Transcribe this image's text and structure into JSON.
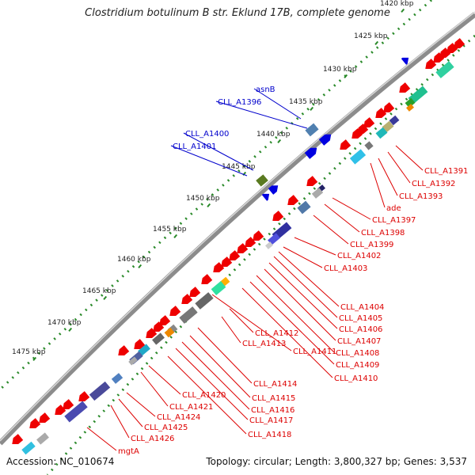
{
  "title": "Clostridium botulinum B str. Eklund 17B, complete genome",
  "accession_text": "Accession: NC_010674",
  "summary_text": "Topology: circular; Length: 3,800,327 bp; Genes: 3,537",
  "kbp_ticks": [
    "1420 kbp",
    "1425 kbp",
    "1430 kbp",
    "1435 kbp",
    "1440 kbp",
    "1445 kbp",
    "1450 kbp",
    "1455 kbp",
    "1460 kbp",
    "1465 kbp",
    "1470 kbp",
    "1475 kbp"
  ],
  "blue_gene_labels": [
    "asnB",
    "CLL_A1396",
    "CLL_A1400",
    "CLL_A1401"
  ],
  "red_gene_labels": [
    "CLL_A1391",
    "CLL_A1392",
    "CLL_A1393",
    "ade",
    "CLL_A1397",
    "CLL_A1398",
    "CLL_A1399",
    "CLL_A1402",
    "CLL_A1403",
    "CLL_A1404",
    "CLL_A1405",
    "CLL_A1406",
    "CLL_A1407",
    "CLL_A1408",
    "CLL_A1409",
    "CLL_A1410",
    "CLL_A1412",
    "CLL_A1413",
    "CLL_A1411",
    "CLL_A1414",
    "CLL_A1415",
    "CLL_A1416",
    "CLL_A1417",
    "CLL_A1418",
    "CLL_A1420",
    "CLL_A1421",
    "CLL_A1424",
    "CLL_A1425",
    "CLL_A1426",
    "mgtA"
  ],
  "colors": {
    "backbone": "#8c8c8c",
    "tick_dots": "#2a8a2a",
    "forward_gene": "#0000e0",
    "reverse_gene": "#ee0000",
    "label_blue": "#0000cc",
    "label_red": "#dd0000"
  }
}
